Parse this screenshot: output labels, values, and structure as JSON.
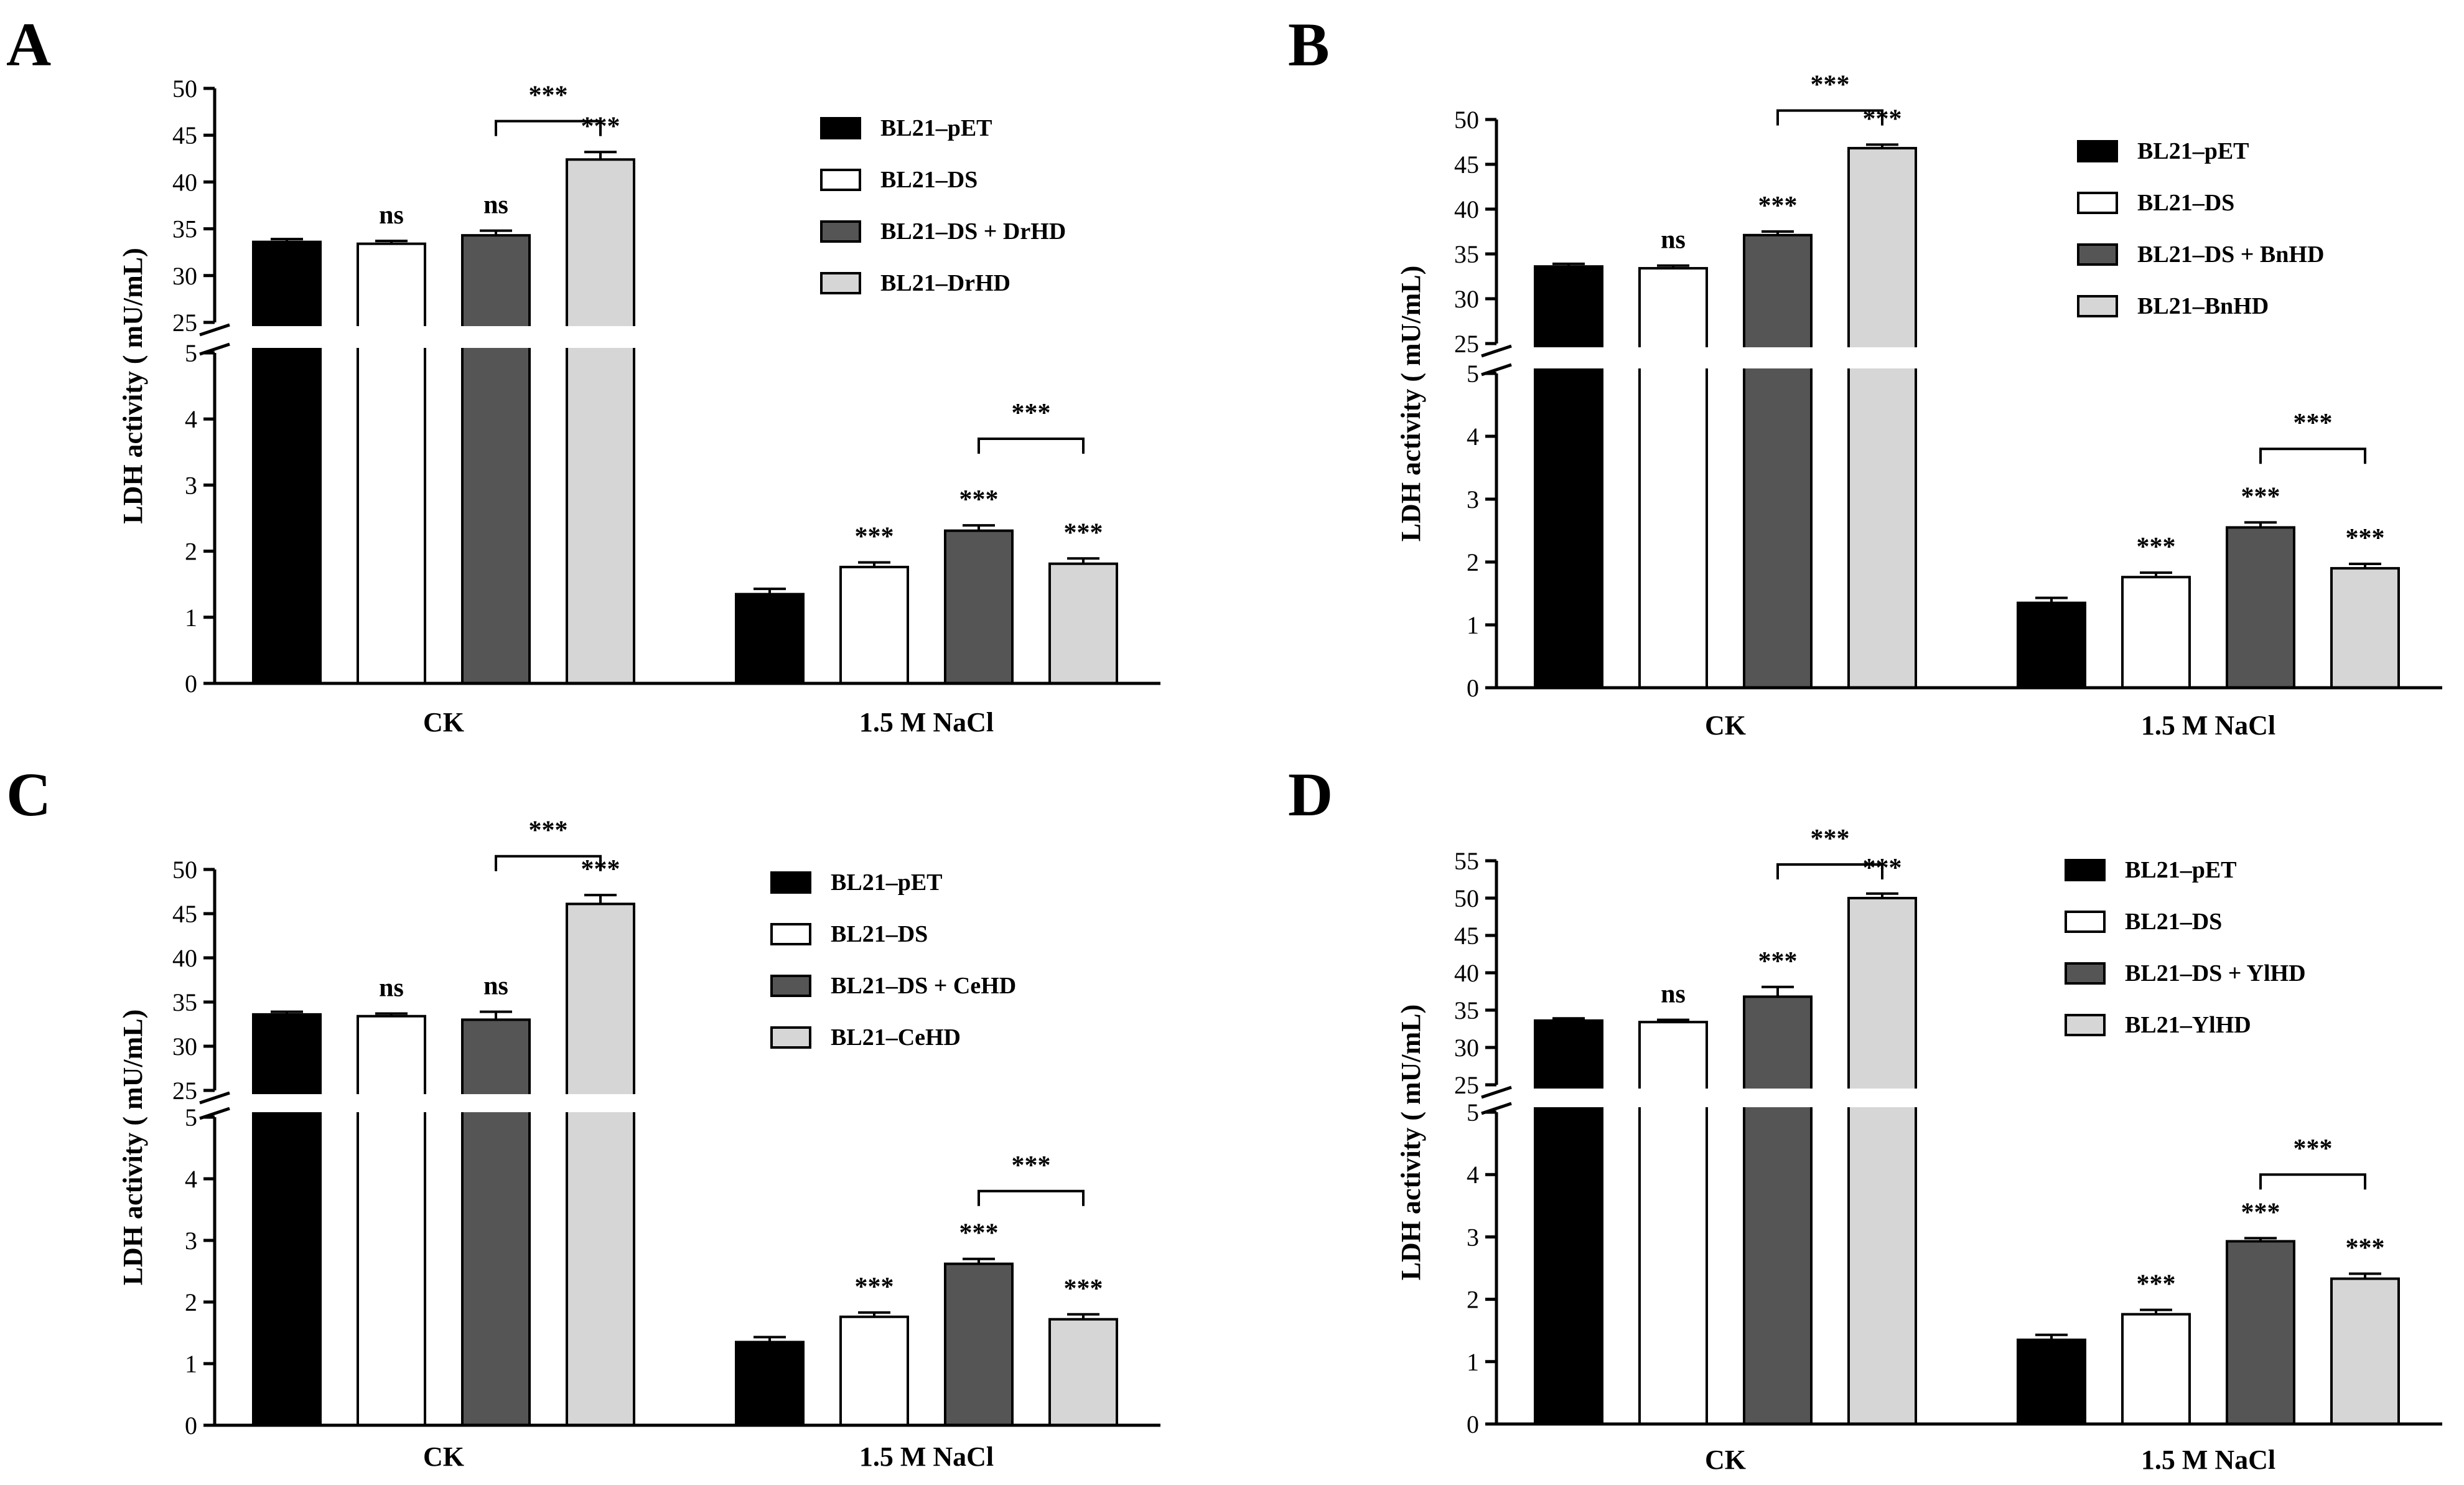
{
  "colors": {
    "pET": "#000000",
    "DS": "#ffffff",
    "DSHD": "#555555",
    "HD": "#d6d6d6"
  },
  "chart_data": [
    {
      "type": "bar",
      "panel": "A",
      "ylabel": "LDH  activity ( mU/mL)",
      "categories": [
        "CK",
        "1.5 M NaCl"
      ],
      "ylim_upper": [
        25,
        50
      ],
      "ylim_lower": [
        0,
        5
      ],
      "yticks_upper": [
        "25",
        "30",
        "35",
        "40",
        "45",
        "50"
      ],
      "yticks_lower": [
        "0",
        "1",
        "2",
        "3",
        "4",
        "5"
      ],
      "series": [
        {
          "name": "BL21–pET",
          "values": [
            33.6,
            1.35
          ],
          "errors": [
            0.3,
            0.08
          ],
          "sig": [
            "",
            ""
          ],
          "color": "pET"
        },
        {
          "name": "BL21–DS",
          "values": [
            33.4,
            1.76
          ],
          "errors": [
            0.3,
            0.07
          ],
          "sig": [
            "ns",
            "***"
          ],
          "color": "DS"
        },
        {
          "name": "BL21–DS + DrHD",
          "values": [
            34.3,
            2.31
          ],
          "errors": [
            0.5,
            0.08
          ],
          "sig": [
            "ns",
            "***"
          ],
          "color": "DSHD"
        },
        {
          "name": "BL21–DrHD",
          "values": [
            42.4,
            1.81
          ],
          "errors": [
            0.8,
            0.08
          ],
          "sig": [
            "***",
            "***"
          ],
          "color": "HD"
        }
      ],
      "brackets": [
        {
          "category": 0,
          "from": 2,
          "to": 3,
          "y": 46.5,
          "label": "***"
        },
        {
          "category": 1,
          "from": 2,
          "to": 3,
          "y": 3.7,
          "label": "***"
        }
      ]
    },
    {
      "type": "bar",
      "panel": "B",
      "ylabel": "LDH  activity ( mU/mL)",
      "categories": [
        "CK",
        "1.5 M NaCl"
      ],
      "ylim_upper": [
        25,
        50
      ],
      "ylim_lower": [
        0,
        5
      ],
      "yticks_upper": [
        "25",
        "30",
        "35",
        "40",
        "45",
        "50"
      ],
      "yticks_lower": [
        "0",
        "1",
        "2",
        "3",
        "4",
        "5"
      ],
      "series": [
        {
          "name": "BL21–pET",
          "values": [
            33.6,
            1.35
          ],
          "errors": [
            0.3,
            0.08
          ],
          "sig": [
            "",
            ""
          ],
          "color": "pET"
        },
        {
          "name": "BL21–DS",
          "values": [
            33.4,
            1.76
          ],
          "errors": [
            0.3,
            0.07
          ],
          "sig": [
            "ns",
            "***"
          ],
          "color": "DS"
        },
        {
          "name": "BL21–DS + BnHD",
          "values": [
            37.1,
            2.55
          ],
          "errors": [
            0.4,
            0.08
          ],
          "sig": [
            "***",
            "***"
          ],
          "color": "DSHD"
        },
        {
          "name": "BL21–BnHD",
          "values": [
            46.8,
            1.9
          ],
          "errors": [
            0.4,
            0.07
          ],
          "sig": [
            "***",
            "***"
          ],
          "color": "HD"
        }
      ],
      "brackets": [
        {
          "category": 0,
          "from": 2,
          "to": 3,
          "y": 51.0,
          "label": "***"
        },
        {
          "category": 1,
          "from": 2,
          "to": 3,
          "y": 3.8,
          "label": "***"
        }
      ]
    },
    {
      "type": "bar",
      "panel": "C",
      "ylabel": "LDH  activity ( mU/mL)",
      "categories": [
        "CK",
        "1.5 M NaCl"
      ],
      "ylim_upper": [
        25,
        50
      ],
      "ylim_lower": [
        0,
        5
      ],
      "yticks_upper": [
        "25",
        "30",
        "35",
        "40",
        "45",
        "50"
      ],
      "yticks_lower": [
        "0",
        "1",
        "2",
        "3",
        "4",
        "5"
      ],
      "series": [
        {
          "name": "BL21–pET",
          "values": [
            33.6,
            1.35
          ],
          "errors": [
            0.3,
            0.08
          ],
          "sig": [
            "",
            ""
          ],
          "color": "pET"
        },
        {
          "name": "BL21–DS",
          "values": [
            33.4,
            1.76
          ],
          "errors": [
            0.3,
            0.07
          ],
          "sig": [
            "ns",
            "***"
          ],
          "color": "DS"
        },
        {
          "name": "BL21–DS + CeHD",
          "values": [
            33.0,
            2.62
          ],
          "errors": [
            0.9,
            0.08
          ],
          "sig": [
            "ns",
            "***"
          ],
          "color": "DSHD"
        },
        {
          "name": "BL21–CeHD",
          "values": [
            46.1,
            1.72
          ],
          "errors": [
            1.0,
            0.08
          ],
          "sig": [
            "***",
            "***"
          ],
          "color": "HD"
        }
      ],
      "brackets": [
        {
          "category": 0,
          "from": 2,
          "to": 3,
          "y": 51.5,
          "label": "***"
        },
        {
          "category": 1,
          "from": 2,
          "to": 3,
          "y": 3.8,
          "label": "***"
        }
      ]
    },
    {
      "type": "bar",
      "panel": "D",
      "ylabel": "LDH  activity ( mU/mL)",
      "categories": [
        "CK",
        "1.5 M NaCl"
      ],
      "ylim_upper": [
        25,
        55
      ],
      "ylim_lower": [
        0,
        5
      ],
      "yticks_upper": [
        "25",
        "30",
        "35",
        "40",
        "45",
        "50",
        "55"
      ],
      "yticks_lower": [
        "0",
        "1",
        "2",
        "3",
        "4",
        "5"
      ],
      "series": [
        {
          "name": "BL21–pET",
          "values": [
            33.6,
            1.35
          ],
          "errors": [
            0.3,
            0.08
          ],
          "sig": [
            "",
            ""
          ],
          "color": "pET"
        },
        {
          "name": "BL21–DS",
          "values": [
            33.4,
            1.76
          ],
          "errors": [
            0.3,
            0.07
          ],
          "sig": [
            "ns",
            "***"
          ],
          "color": "DS"
        },
        {
          "name": "BL21–DS + YlHD",
          "values": [
            36.8,
            2.93
          ],
          "errors": [
            1.3,
            0.05
          ],
          "sig": [
            "***",
            "***"
          ],
          "color": "DSHD"
        },
        {
          "name": "BL21–YlHD",
          "values": [
            50.0,
            2.33
          ],
          "errors": [
            0.6,
            0.08
          ],
          "sig": [
            "***",
            "***"
          ],
          "color": "HD"
        }
      ],
      "brackets": [
        {
          "category": 0,
          "from": 2,
          "to": 3,
          "y": 54.5,
          "label": "***"
        },
        {
          "category": 1,
          "from": 2,
          "to": 3,
          "y": 4.0,
          "label": "***"
        }
      ]
    }
  ]
}
